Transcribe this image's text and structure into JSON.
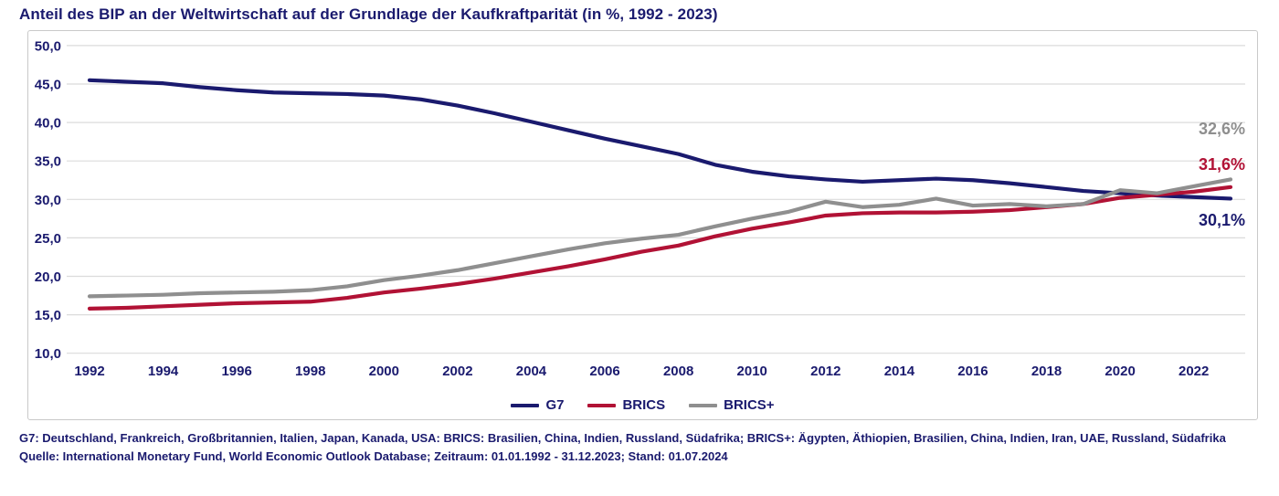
{
  "title": "Anteil des BIP an der Weltwirtschaft auf der Grundlage der Kaufkraftparität (in %, 1992 - 2023)",
  "colors": {
    "g7": "#1a1a6e",
    "brics": "#b11235",
    "brics_plus": "#8f8f8f",
    "axis_text": "#1a1a6e",
    "gridline": "#dbdbdb",
    "frame_border": "#c9c9c9"
  },
  "chart_data": {
    "type": "line",
    "title": "Anteil des BIP an der Weltwirtschaft auf der Grundlage der Kaufkraftparität (in %, 1992 - 2023)",
    "x": [
      1992,
      1993,
      1994,
      1995,
      1996,
      1997,
      1998,
      1999,
      2000,
      2001,
      2002,
      2003,
      2004,
      2005,
      2006,
      2007,
      2008,
      2009,
      2010,
      2011,
      2012,
      2013,
      2014,
      2015,
      2016,
      2017,
      2018,
      2019,
      2020,
      2021,
      2022,
      2023
    ],
    "series": [
      {
        "name": "G7",
        "color_key": "g7",
        "values": [
          45.5,
          45.3,
          45.1,
          44.6,
          44.2,
          43.9,
          43.8,
          43.7,
          43.5,
          43.0,
          42.2,
          41.2,
          40.1,
          39.0,
          37.9,
          36.9,
          35.9,
          34.5,
          33.6,
          33.0,
          32.6,
          32.3,
          32.5,
          32.7,
          32.5,
          32.1,
          31.6,
          31.1,
          30.8,
          30.5,
          30.3,
          30.1
        ]
      },
      {
        "name": "BRICS",
        "color_key": "brics",
        "values": [
          15.8,
          15.9,
          16.1,
          16.3,
          16.5,
          16.6,
          16.7,
          17.2,
          17.9,
          18.4,
          19.0,
          19.7,
          20.5,
          21.3,
          22.2,
          23.2,
          24.0,
          25.2,
          26.2,
          27.0,
          27.9,
          28.2,
          28.3,
          28.3,
          28.4,
          28.6,
          29.0,
          29.4,
          30.2,
          30.6,
          31.0,
          31.6
        ]
      },
      {
        "name": "BRICS+",
        "color_key": "brics_plus",
        "values": [
          17.4,
          17.5,
          17.6,
          17.8,
          17.9,
          18.0,
          18.2,
          18.7,
          19.5,
          20.1,
          20.8,
          21.7,
          22.6,
          23.5,
          24.3,
          24.9,
          25.4,
          26.5,
          27.5,
          28.4,
          29.7,
          29.0,
          29.3,
          30.1,
          29.2,
          29.4,
          29.1,
          29.4,
          31.2,
          30.8,
          31.7,
          32.6
        ]
      }
    ],
    "ylim": [
      10,
      50
    ],
    "yticks_values": [
      50,
      45,
      40,
      35,
      30,
      25,
      20,
      15,
      10
    ],
    "yticks_labels": [
      "50,0",
      "45,0",
      "40,0",
      "35,0",
      "30,0",
      "25,0",
      "20,0",
      "15,0",
      "10,0"
    ],
    "xticks": [
      "1992",
      "1994",
      "1996",
      "1998",
      "2000",
      "2002",
      "2004",
      "2006",
      "2008",
      "2010",
      "2012",
      "2014",
      "2016",
      "2018",
      "2020",
      "2022"
    ],
    "grid": true,
    "legend_position": "bottom-center"
  },
  "legend": {
    "items": [
      {
        "label": "G7"
      },
      {
        "label": "BRICS"
      },
      {
        "label": "BRICS+"
      }
    ]
  },
  "annotations": {
    "brics_plus_end": "32,6%",
    "brics_end": "31,6%",
    "g7_end": "30,1%"
  },
  "footer": {
    "definitions": "G7: Deutschland, Frankreich, Großbritannien, Italien, Japan, Kanada, USA: BRICS: Brasilien, China, Indien, Russland, Südafrika; BRICS+: Ägypten, Äthiopien, Brasilien, China, Indien, Iran, UAE, Russland, Südafrika",
    "source": "Quelle: International Monetary Fund, World Economic Outlook Database; Zeitraum: 01.01.1992 - 31.12.2023; Stand: 01.07.2024"
  }
}
